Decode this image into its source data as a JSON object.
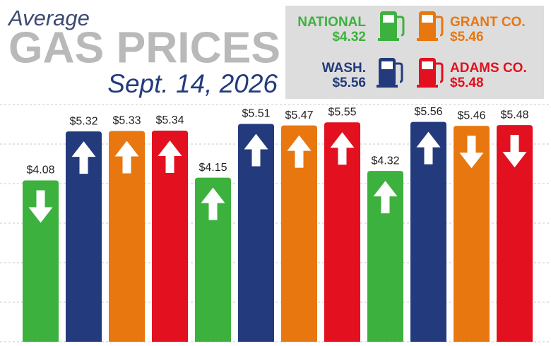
{
  "chart_data": {
    "type": "bar",
    "kicker": "Average",
    "title": "GAS PRICES",
    "subtitle": "Sept. 14, 2026",
    "categories": [
      null,
      null,
      null
    ],
    "series": [
      {
        "name": "NATIONAL",
        "color": "#3db13d",
        "values": [
          4.08,
          4.15,
          4.32
        ],
        "value_labels": [
          "$4.08",
          "$4.15",
          "$4.32"
        ],
        "arrows": [
          "down",
          "up",
          "up"
        ]
      },
      {
        "name": "WASH.",
        "color": "#233b7d",
        "values": [
          5.32,
          5.51,
          5.56
        ],
        "value_labels": [
          "$5.32",
          "$5.51",
          "$5.56"
        ],
        "arrows": [
          "up",
          "up",
          "up"
        ]
      },
      {
        "name": "GRANT CO.",
        "color": "#e8770f",
        "values": [
          5.33,
          5.47,
          5.46
        ],
        "value_labels": [
          "$5.33",
          "$5.47",
          "$5.46"
        ],
        "arrows": [
          "up",
          "up",
          "down"
        ]
      },
      {
        "name": "ADAMS CO.",
        "color": "#e3101f",
        "values": [
          5.34,
          5.55,
          5.48
        ],
        "value_labels": [
          "$5.34",
          "$5.55",
          "$5.48"
        ],
        "arrows": [
          "up",
          "up",
          "down"
        ]
      }
    ],
    "ylim": [
      0,
      6
    ],
    "yticks": [
      0,
      1,
      2,
      3,
      4,
      5,
      6
    ],
    "show_tick_labels": false,
    "grid": true
  }
}
